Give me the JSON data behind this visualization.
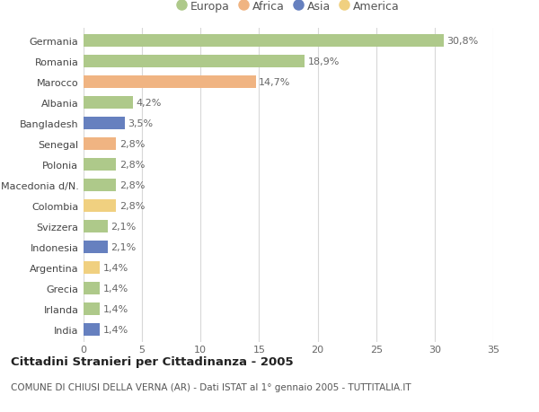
{
  "countries": [
    "Germania",
    "Romania",
    "Marocco",
    "Albania",
    "Bangladesh",
    "Senegal",
    "Polonia",
    "Macedonia d/N.",
    "Colombia",
    "Svizzera",
    "Indonesia",
    "Argentina",
    "Grecia",
    "Irlanda",
    "India"
  ],
  "values": [
    30.8,
    18.9,
    14.7,
    4.2,
    3.5,
    2.8,
    2.8,
    2.8,
    2.8,
    2.1,
    2.1,
    1.4,
    1.4,
    1.4,
    1.4
  ],
  "labels": [
    "30,8%",
    "18,9%",
    "14,7%",
    "4,2%",
    "3,5%",
    "2,8%",
    "2,8%",
    "2,8%",
    "2,8%",
    "2,1%",
    "2,1%",
    "1,4%",
    "1,4%",
    "1,4%",
    "1,4%"
  ],
  "continents": [
    "Europa",
    "Europa",
    "Africa",
    "Europa",
    "Asia",
    "Africa",
    "Europa",
    "Europa",
    "America",
    "Europa",
    "Asia",
    "America",
    "Europa",
    "Europa",
    "Asia"
  ],
  "colors": {
    "Europa": "#aec98a",
    "Africa": "#f0b482",
    "Asia": "#6680bf",
    "America": "#f0d080"
  },
  "legend_order": [
    "Europa",
    "Africa",
    "Asia",
    "America"
  ],
  "xlim": [
    0,
    35
  ],
  "xticks": [
    0,
    5,
    10,
    15,
    20,
    25,
    30,
    35
  ],
  "title": "Cittadini Stranieri per Cittadinanza - 2005",
  "subtitle": "COMUNE DI CHIUSI DELLA VERNA (AR) - Dati ISTAT al 1° gennaio 2005 - TUTTITALIA.IT",
  "bg_color": "#ffffff",
  "grid_color": "#d8d8d8",
  "bar_height": 0.6,
  "label_fontsize": 8,
  "tick_fontsize": 8,
  "title_fontsize": 9.5,
  "subtitle_fontsize": 7.5
}
